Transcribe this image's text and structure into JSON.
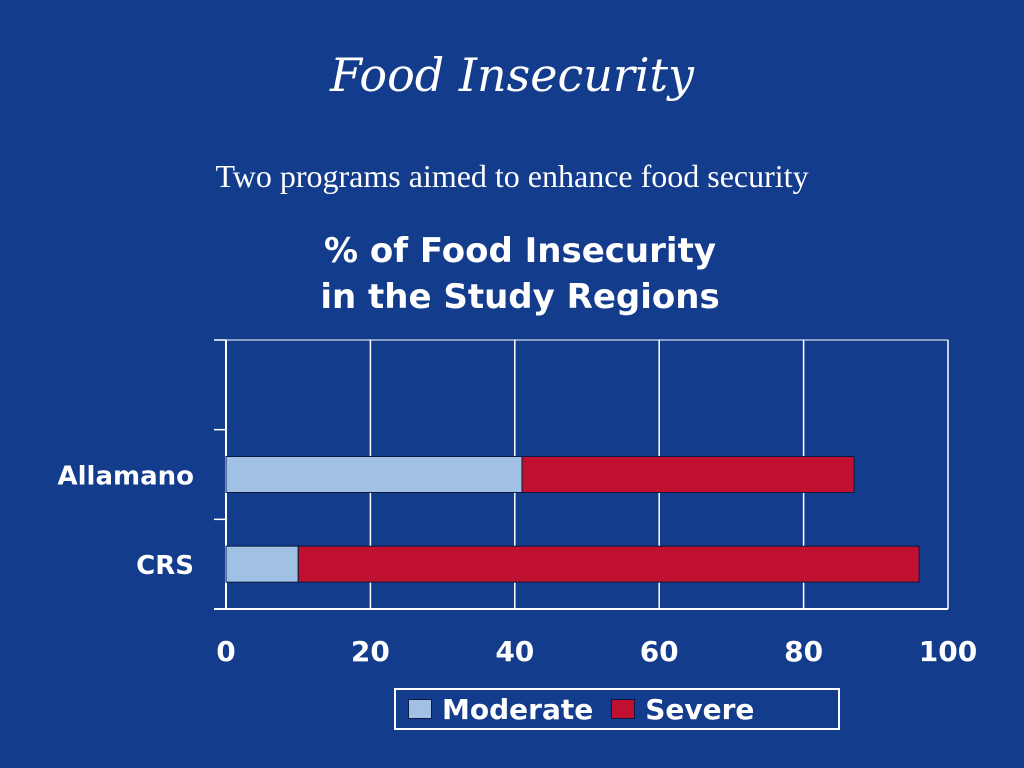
{
  "slide": {
    "title": "Food Insecurity",
    "subtitle": "Two programs aimed to enhance food security"
  },
  "colors": {
    "background": "#143c8c",
    "moderate": "#a0c0e4",
    "severe": "#c01030",
    "grid": "#ffffff"
  },
  "chart_data": {
    "type": "bar",
    "orientation": "horizontal",
    "stacked": true,
    "title_lines": [
      "% of Food Insecurity",
      "in the Study Regions"
    ],
    "categories": [
      "Allamano",
      "CRS"
    ],
    "series": [
      {
        "name": "Moderate",
        "values": [
          41,
          10
        ]
      },
      {
        "name": "Severe",
        "values": [
          46,
          86
        ]
      }
    ],
    "xlim": [
      0,
      100
    ],
    "x_ticks": [
      "0",
      "20",
      "40",
      "60",
      "80",
      "100"
    ],
    "grid": true,
    "legend_position": "bottom"
  }
}
